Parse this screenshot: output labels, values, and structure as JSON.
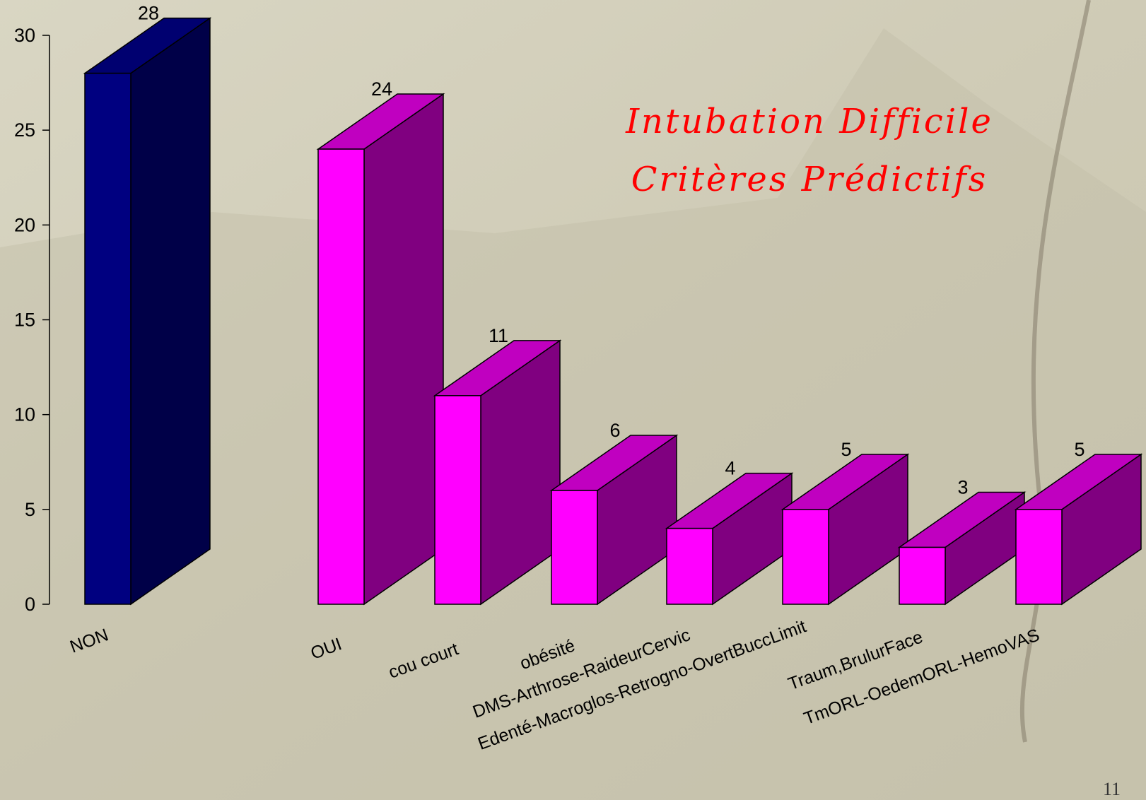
{
  "chart_data": {
    "type": "bar3d",
    "title": [
      "Intubation Difficile",
      "Critères Prédictifs"
    ],
    "categories": [
      "NON",
      "OUI",
      "cou court",
      "obésité",
      "DMS-Arthrose-RaideurCervic",
      "Edenté-Macroglos-Retrogno-OvertBuccLimit",
      "Traum,BrulurFace",
      "TmORL-OedemORL-HemoVAS"
    ],
    "values": [
      28,
      24,
      11,
      6,
      4,
      5,
      3,
      5
    ],
    "colors": [
      "#000080",
      "#ff00ff",
      "#ff00ff",
      "#ff00ff",
      "#ff00ff",
      "#ff00ff",
      "#ff00ff",
      "#ff00ff"
    ],
    "side_colors": [
      "#000048",
      "#800080",
      "#800080",
      "#800080",
      "#800080",
      "#800080",
      "#800080",
      "#800080"
    ],
    "top_colors": [
      "#000070",
      "#c000c0",
      "#c000c0",
      "#c000c0",
      "#c000c0",
      "#c000c0",
      "#c000c0",
      "#c000c0"
    ],
    "ylim": [
      0,
      30
    ],
    "yticks": [
      0,
      5,
      10,
      15,
      20,
      25,
      30
    ]
  },
  "page_number": "11"
}
